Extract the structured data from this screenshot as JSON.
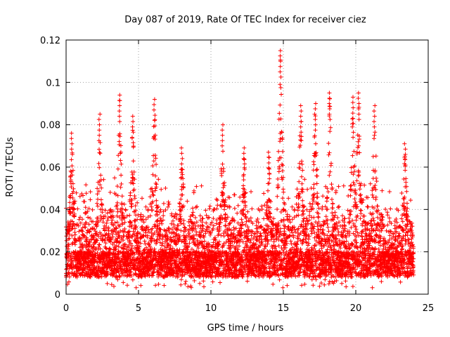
{
  "chart_data": {
    "type": "scatter",
    "title": "Day 087 of 2019, Rate Of TEC Index for receiver ciez",
    "xlabel": "GPS time / hours",
    "ylabel": "ROTI / TECUs",
    "xlim": [
      0,
      25
    ],
    "ylim": [
      0,
      0.12
    ],
    "x_ticks": [
      0,
      5,
      10,
      15,
      20,
      25
    ],
    "x_tick_labels": [
      "0",
      "5",
      "10",
      "15",
      "20",
      "25"
    ],
    "y_ticks": [
      0,
      0.02,
      0.04,
      0.06,
      0.08,
      0.1,
      0.12
    ],
    "y_tick_labels": [
      "0",
      "0.02",
      "0.04",
      "0.06",
      "0.08",
      "0.1",
      "0.12"
    ],
    "grid": true,
    "marker": "+",
    "color": "#ff0000",
    "series": [
      {
        "name": "ROTI",
        "sampling_hours": 0.012,
        "x_range": [
          0,
          24
        ],
        "baseline_band": [
          0.008,
          0.02
        ],
        "peaks": [
          {
            "x": 0.4,
            "y": 0.076
          },
          {
            "x": 2.3,
            "y": 0.085
          },
          {
            "x": 3.7,
            "y": 0.094
          },
          {
            "x": 4.6,
            "y": 0.084
          },
          {
            "x": 6.1,
            "y": 0.092
          },
          {
            "x": 8.0,
            "y": 0.069
          },
          {
            "x": 10.8,
            "y": 0.08
          },
          {
            "x": 12.3,
            "y": 0.069
          },
          {
            "x": 14.0,
            "y": 0.067
          },
          {
            "x": 14.8,
            "y": 0.115
          },
          {
            "x": 16.2,
            "y": 0.089
          },
          {
            "x": 17.2,
            "y": 0.09
          },
          {
            "x": 18.2,
            "y": 0.095
          },
          {
            "x": 19.8,
            "y": 0.093
          },
          {
            "x": 20.2,
            "y": 0.095
          },
          {
            "x": 21.3,
            "y": 0.089
          },
          {
            "x": 23.4,
            "y": 0.071
          }
        ]
      }
    ]
  }
}
